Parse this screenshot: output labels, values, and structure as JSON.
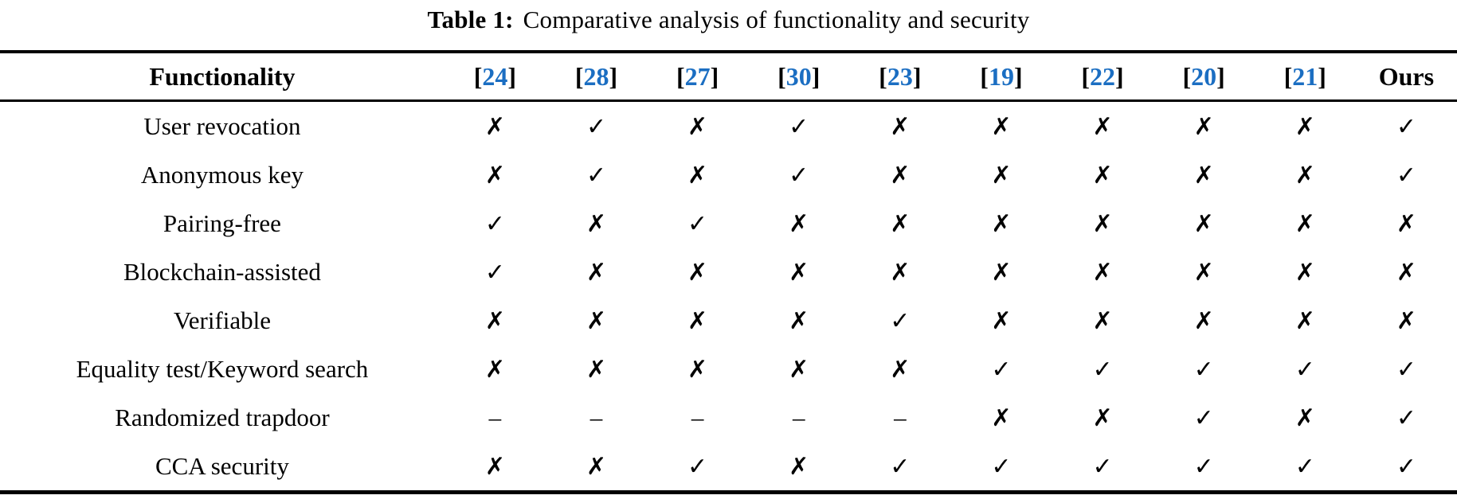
{
  "caption": {
    "label": "Table 1:",
    "text": "Comparative analysis of functionality and security"
  },
  "header": {
    "functionality": "Functionality",
    "bracket_open": "[",
    "bracket_close": "]",
    "citations": [
      "24",
      "28",
      "27",
      "30",
      "23",
      "19",
      "22",
      "20",
      "21"
    ],
    "ours": "Ours"
  },
  "marks_legend": {
    "check": "✓",
    "cross": "✗",
    "dash": "–"
  },
  "rows": [
    {
      "label": "User revocation",
      "marks": [
        "cross",
        "check",
        "cross",
        "check",
        "cross",
        "cross",
        "cross",
        "cross",
        "cross",
        "check"
      ]
    },
    {
      "label": "Anonymous key",
      "marks": [
        "cross",
        "check",
        "cross",
        "check",
        "cross",
        "cross",
        "cross",
        "cross",
        "cross",
        "check"
      ]
    },
    {
      "label": "Pairing-free",
      "marks": [
        "check",
        "cross",
        "check",
        "cross",
        "cross",
        "cross",
        "cross",
        "cross",
        "cross",
        "cross"
      ]
    },
    {
      "label": "Blockchain-assisted",
      "marks": [
        "check",
        "cross",
        "cross",
        "cross",
        "cross",
        "cross",
        "cross",
        "cross",
        "cross",
        "cross"
      ]
    },
    {
      "label": "Verifiable",
      "marks": [
        "cross",
        "cross",
        "cross",
        "cross",
        "check",
        "cross",
        "cross",
        "cross",
        "cross",
        "cross"
      ]
    },
    {
      "label": "Equality test/Keyword search",
      "marks": [
        "cross",
        "cross",
        "cross",
        "cross",
        "cross",
        "check",
        "check",
        "check",
        "check",
        "check"
      ]
    },
    {
      "label": "Randomized trapdoor",
      "marks": [
        "dash",
        "dash",
        "dash",
        "dash",
        "dash",
        "cross",
        "cross",
        "check",
        "cross",
        "check"
      ]
    },
    {
      "label": "CCA security",
      "marks": [
        "cross",
        "cross",
        "check",
        "cross",
        "check",
        "check",
        "check",
        "check",
        "check",
        "check"
      ]
    }
  ],
  "colors": {
    "citation": "#1b6ec2",
    "text": "#000000",
    "rule": "#000000"
  }
}
